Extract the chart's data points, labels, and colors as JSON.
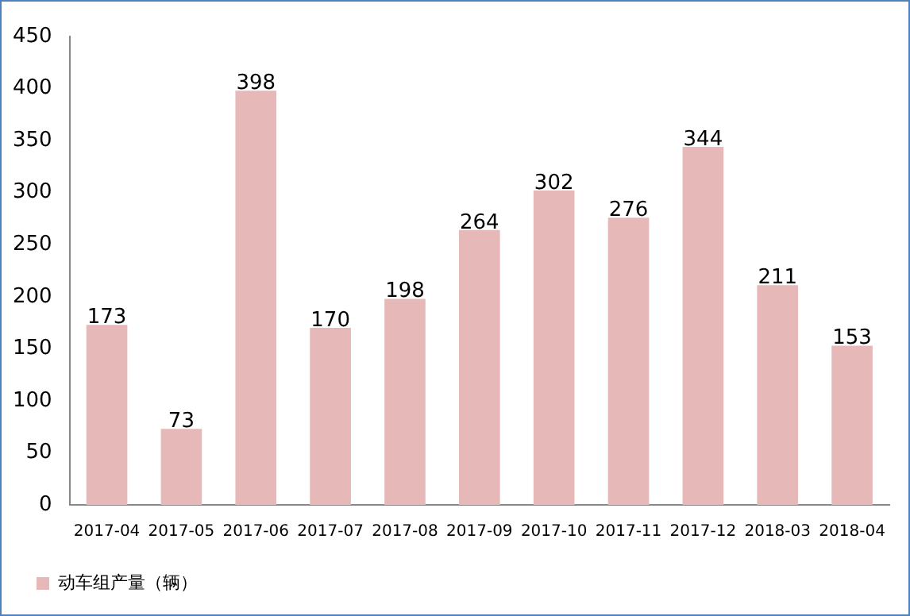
{
  "chart_data": {
    "type": "bar",
    "categories": [
      "2017-04",
      "2017-05",
      "2017-06",
      "2017-07",
      "2017-08",
      "2017-09",
      "2017-10",
      "2017-11",
      "2017-12",
      "2018-03",
      "2018-04"
    ],
    "series": [
      {
        "name": "动车组产量（辆）",
        "color": "#e6b9b8",
        "values": [
          173,
          73,
          398,
          170,
          198,
          264,
          302,
          276,
          344,
          211,
          153
        ]
      }
    ],
    "ylim": [
      0,
      450
    ],
    "yticks": [
      0,
      50,
      100,
      150,
      200,
      250,
      300,
      350,
      400,
      450
    ],
    "grid": false,
    "legend": "bottom left",
    "data_labels": true
  }
}
